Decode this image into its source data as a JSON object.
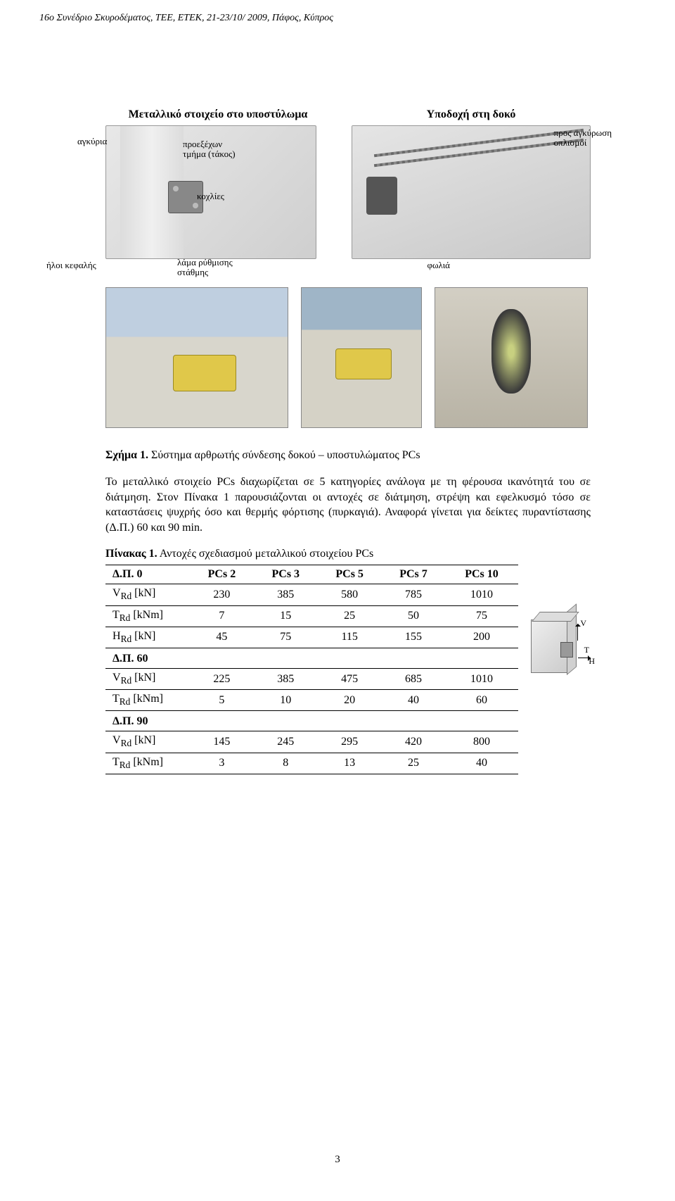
{
  "header": "16ο Συνέδριο Σκυροδέματος, ΤΕΕ, ΕΤΕΚ, 21-23/10/ 2009, Πάφος, Κύπρος",
  "diagram": {
    "leftTitle": "Μεταλλικό στοιχείο στο υποστύλωμα",
    "rightTitle": "Υποδοχή στη δοκό",
    "labels": {
      "anchors": "αγκύρια",
      "protrude": "προεξέχων\nτμήμα (τάκος)",
      "bolts": "κοχλίες",
      "heads": "ήλοι κεφαλής",
      "plate": "λάμα ρύθμισης\nστάθμης",
      "socket": "φωλιά",
      "rebar": "προς αγκύρωση\nοπλισμοί"
    }
  },
  "figCaption": {
    "bold": "Σχήμα 1.",
    "text": " Σύστημα αρθρωτής σύνδεσης δοκού – υποστυλώματος PCs"
  },
  "bodyText": "Το μεταλλικό στοιχείο PCs διαχωρίζεται σε 5 κατηγορίες ανάλογα με τη φέρουσα ικανότητά του σε διάτμηση. Στον Πίνακα 1 παρουσιάζονται οι αντοχές σε διάτμηση, στρέψη και εφελκυσμό τόσο σε καταστάσεις ψυχρής όσο και θερμής φόρτισης (πυρκαγιά). Αναφορά γίνεται για δείκτες πυραντίστασης (Δ.Π.) 60 και 90 min.",
  "tableCaption": {
    "bold": "Πίνακας 1.",
    "text": " Αντοχές σχεδιασμού μεταλλικού στοιχείου PCs"
  },
  "table": {
    "headers": [
      "Δ.Π. 0",
      "PCs 2",
      "PCs 3",
      "PCs 5",
      "PCs 7",
      "PCs 10"
    ],
    "sections": [
      {
        "rows": [
          {
            "label": "V_Rd [kN]",
            "cells": [
              "230",
              "385",
              "580",
              "785",
              "1010"
            ]
          },
          {
            "label": "T_Rd [kNm]",
            "cells": [
              "7",
              "15",
              "25",
              "50",
              "75"
            ]
          },
          {
            "label": "H_Rd [kN]",
            "cells": [
              "45",
              "75",
              "115",
              "155",
              "200"
            ]
          }
        ]
      },
      {
        "head": "Δ.Π. 60",
        "rows": [
          {
            "label": "V_Rd [kN]",
            "cells": [
              "225",
              "385",
              "475",
              "685",
              "1010"
            ]
          },
          {
            "label": "T_Rd [kNm]",
            "cells": [
              "5",
              "10",
              "20",
              "40",
              "60"
            ]
          }
        ]
      },
      {
        "head": "Δ.Π. 90",
        "rows": [
          {
            "label": "V_Rd [kN]",
            "cells": [
              "145",
              "245",
              "295",
              "420",
              "800"
            ]
          },
          {
            "label": "T_Rd [kNm]",
            "cells": [
              "3",
              "8",
              "13",
              "25",
              "40"
            ]
          }
        ]
      }
    ]
  },
  "axis": {
    "V": "V",
    "T": "T",
    "H": "H"
  },
  "pageNumber": "3"
}
